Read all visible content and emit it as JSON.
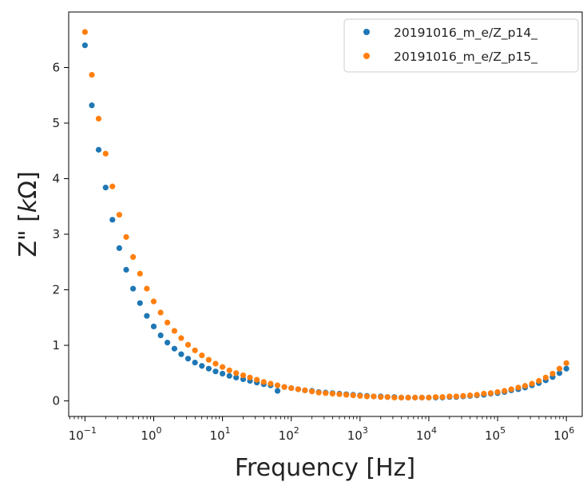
{
  "chart_data": {
    "type": "scatter",
    "xlabel": "Frequency [Hz]",
    "ylabel_main": "Z\" [",
    "ylabel_italic": "k",
    "ylabel_tail": "Ω]",
    "x_scale": "log",
    "xlim": [
      0.058,
      1700000
    ],
    "ylim": [
      -0.28,
      7.0
    ],
    "grid": false,
    "legend_position": "top-right",
    "x_ticks": [
      {
        "value": 0.1,
        "base": "10",
        "exp": "−1"
      },
      {
        "value": 1,
        "base": "10",
        "exp": "0"
      },
      {
        "value": 10,
        "base": "10",
        "exp": "1"
      },
      {
        "value": 100,
        "base": "10",
        "exp": "2"
      },
      {
        "value": 1000,
        "base": "10",
        "exp": "3"
      },
      {
        "value": 10000,
        "base": "10",
        "exp": "4"
      },
      {
        "value": 100000,
        "base": "10",
        "exp": "5"
      },
      {
        "value": 1000000,
        "base": "10",
        "exp": "6"
      }
    ],
    "y_ticks": [
      0,
      1,
      2,
      3,
      4,
      5,
      6
    ],
    "x": [
      0.1,
      0.126,
      0.158,
      0.2,
      0.251,
      0.316,
      0.398,
      0.501,
      0.631,
      0.794,
      1.0,
      1.26,
      1.58,
      2.0,
      2.51,
      3.16,
      3.98,
      5.01,
      6.31,
      7.94,
      10,
      12.6,
      15.8,
      20,
      25.1,
      31.6,
      39.8,
      50.1,
      63.1,
      79.4,
      100,
      126,
      158,
      200,
      251,
      316,
      398,
      501,
      631,
      794,
      1000,
      1260,
      1580,
      2000,
      2510,
      3160,
      3980,
      5010,
      6310,
      7940,
      10000,
      12600,
      15800,
      20000,
      25100,
      31600,
      39800,
      50100,
      63100,
      79400,
      100000,
      126000,
      158000,
      200000,
      251000,
      316000,
      398000,
      501000,
      631000,
      794000,
      1000000
    ],
    "series": [
      {
        "name": "20191016_m_e/Z_p14_",
        "color": "#1f77b4",
        "values": [
          6.4,
          5.32,
          4.52,
          3.84,
          3.26,
          2.75,
          2.36,
          2.02,
          1.76,
          1.53,
          1.34,
          1.18,
          1.05,
          0.94,
          0.84,
          0.76,
          0.69,
          0.63,
          0.58,
          0.53,
          0.49,
          0.45,
          0.42,
          0.39,
          0.36,
          0.33,
          0.3,
          0.28,
          0.18,
          0.25,
          0.23,
          0.21,
          0.19,
          0.18,
          0.16,
          0.15,
          0.14,
          0.13,
          0.12,
          0.11,
          0.1,
          0.09,
          0.08,
          0.08,
          0.07,
          0.07,
          0.06,
          0.06,
          0.06,
          0.06,
          0.06,
          0.06,
          0.06,
          0.07,
          0.07,
          0.08,
          0.09,
          0.1,
          0.11,
          0.13,
          0.14,
          0.16,
          0.19,
          0.21,
          0.24,
          0.28,
          0.32,
          0.37,
          0.43,
          0.5,
          0.58
        ]
      },
      {
        "name": "20191016_m_e/Z_p15_",
        "color": "#ff7f0e",
        "values": [
          6.64,
          5.87,
          5.08,
          4.45,
          3.86,
          3.35,
          2.95,
          2.59,
          2.29,
          2.02,
          1.79,
          1.59,
          1.41,
          1.26,
          1.13,
          1.01,
          0.91,
          0.82,
          0.74,
          0.67,
          0.61,
          0.55,
          0.5,
          0.46,
          0.42,
          0.38,
          0.34,
          0.31,
          0.28,
          0.25,
          0.23,
          0.21,
          0.19,
          0.17,
          0.15,
          0.14,
          0.13,
          0.12,
          0.11,
          0.1,
          0.09,
          0.08,
          0.08,
          0.07,
          0.07,
          0.06,
          0.06,
          0.06,
          0.06,
          0.06,
          0.06,
          0.07,
          0.07,
          0.08,
          0.08,
          0.09,
          0.1,
          0.11,
          0.13,
          0.14,
          0.16,
          0.18,
          0.21,
          0.24,
          0.27,
          0.31,
          0.36,
          0.42,
          0.49,
          0.58,
          0.68
        ]
      }
    ]
  }
}
